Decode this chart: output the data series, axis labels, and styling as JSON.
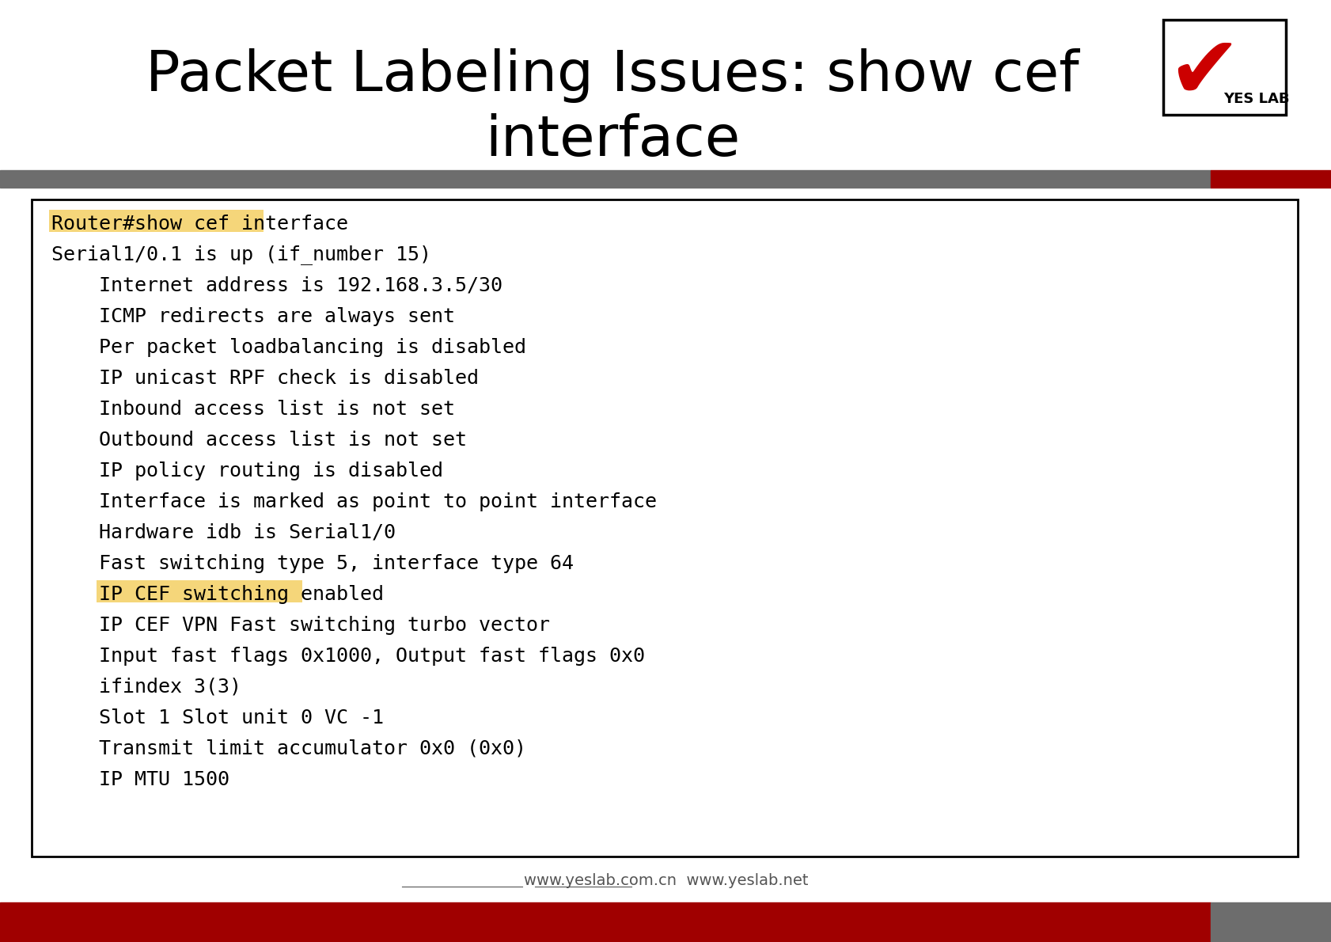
{
  "title_line1": "Packet Labeling Issues: show cef",
  "title_line2": "interface",
  "title_fontsize": 52,
  "title_color": "#000000",
  "bg_color": "#ffffff",
  "header_bar_color": "#6d6d6d",
  "header_bar_right_color": "#a00000",
  "footer_bar_color": "#a00000",
  "footer_bar_right_color": "#6d6d6d",
  "footer_text": "www.yeslab.com.cn  www.yeslab.net",
  "footer_fontsize": 14,
  "code_box_bg": "#ffffff",
  "code_box_border": "#000000",
  "highlight_color": "#f5d67a",
  "code_lines": [
    {
      "text": "Router#show cef interface",
      "indent": 0,
      "highlight": true
    },
    {
      "text": "Serial1/0.1 is up (if_number 15)",
      "indent": 0,
      "highlight": false
    },
    {
      "text": "Internet address is 192.168.3.5/30",
      "indent": 2,
      "highlight": false
    },
    {
      "text": "ICMP redirects are always sent",
      "indent": 2,
      "highlight": false
    },
    {
      "text": "Per packet loadbalancing is disabled",
      "indent": 2,
      "highlight": false
    },
    {
      "text": "IP unicast RPF check is disabled",
      "indent": 2,
      "highlight": false
    },
    {
      "text": "Inbound access list is not set",
      "indent": 2,
      "highlight": false
    },
    {
      "text": "Outbound access list is not set",
      "indent": 2,
      "highlight": false
    },
    {
      "text": "IP policy routing is disabled",
      "indent": 2,
      "highlight": false
    },
    {
      "text": "Interface is marked as point to point interface",
      "indent": 2,
      "highlight": false
    },
    {
      "text": "Hardware idb is Serial1/0",
      "indent": 2,
      "highlight": false
    },
    {
      "text": "Fast switching type 5, interface type 64",
      "indent": 2,
      "highlight": false
    },
    {
      "text": "IP CEF switching enabled",
      "indent": 2,
      "highlight": true
    },
    {
      "text": "IP CEF VPN Fast switching turbo vector",
      "indent": 2,
      "highlight": false
    },
    {
      "text": "Input fast flags 0x1000, Output fast flags 0x0",
      "indent": 2,
      "highlight": false
    },
    {
      "text": "ifindex 3(3)",
      "indent": 2,
      "highlight": false
    },
    {
      "text": "Slot 1 Slot unit 0 VC -1",
      "indent": 2,
      "highlight": false
    },
    {
      "text": "Transmit limit accumulator 0x0 (0x0)",
      "indent": 2,
      "highlight": false
    },
    {
      "text": "IP MTU 1500",
      "indent": 2,
      "highlight": false
    }
  ],
  "code_fontsize": 18,
  "code_font": "monospace"
}
